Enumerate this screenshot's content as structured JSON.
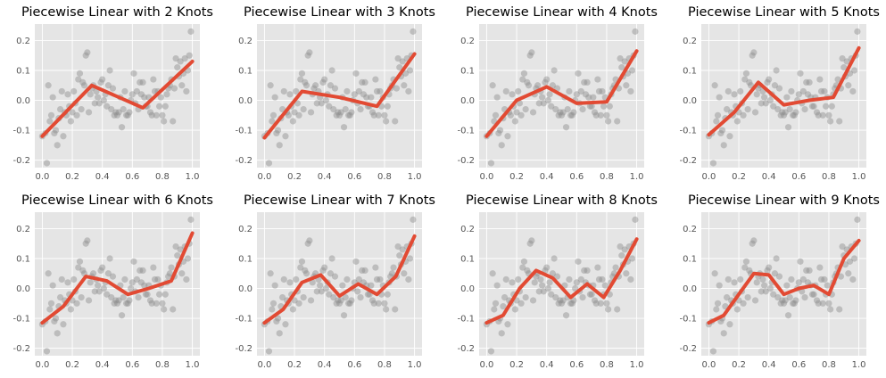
{
  "figure": {
    "background": "#ffffff",
    "panel_background": "#e5e5e5",
    "grid_color": "#ffffff",
    "point_color": "#8c8c8c",
    "line_color": "#e24a33"
  },
  "scatter": {
    "x": [
      0.0,
      0.02,
      0.03,
      0.04,
      0.05,
      0.06,
      0.07,
      0.08,
      0.09,
      0.1,
      0.11,
      0.12,
      0.13,
      0.14,
      0.15,
      0.16,
      0.17,
      0.18,
      0.19,
      0.2,
      0.21,
      0.22,
      0.23,
      0.24,
      0.25,
      0.26,
      0.27,
      0.28,
      0.29,
      0.3,
      0.31,
      0.32,
      0.33,
      0.34,
      0.35,
      0.36,
      0.37,
      0.38,
      0.39,
      0.4,
      0.41,
      0.42,
      0.43,
      0.44,
      0.45,
      0.46,
      0.47,
      0.48,
      0.49,
      0.5,
      0.51,
      0.52,
      0.53,
      0.54,
      0.55,
      0.56,
      0.57,
      0.58,
      0.59,
      0.6,
      0.61,
      0.62,
      0.63,
      0.64,
      0.65,
      0.66,
      0.67,
      0.68,
      0.69,
      0.7,
      0.71,
      0.72,
      0.73,
      0.74,
      0.75,
      0.76,
      0.77,
      0.78,
      0.79,
      0.8,
      0.81,
      0.82,
      0.83,
      0.84,
      0.85,
      0.86,
      0.87,
      0.88,
      0.89,
      0.9,
      0.91,
      0.92,
      0.93,
      0.94,
      0.95,
      0.96,
      0.97,
      0.98,
      0.99
    ],
    "y": [
      -0.12,
      -0.11,
      -0.21,
      0.05,
      -0.07,
      -0.05,
      0.01,
      -0.11,
      -0.1,
      -0.15,
      -0.06,
      -0.03,
      0.03,
      -0.12,
      -0.04,
      -0.05,
      0.02,
      -0.02,
      -0.07,
      -0.04,
      0.03,
      -0.01,
      -0.05,
      0.07,
      0.09,
      -0.03,
      0.06,
      0.05,
      0.15,
      0.16,
      -0.04,
      0.02,
      0.04,
      0.05,
      -0.01,
      0.03,
      0.01,
      -0.01,
      0.06,
      0.07,
      0.0,
      0.02,
      -0.02,
      0.05,
      0.1,
      -0.03,
      0.04,
      -0.05,
      -0.04,
      -0.05,
      -0.04,
      0.01,
      -0.09,
      -0.03,
      0.03,
      -0.05,
      -0.05,
      -0.04,
      0.0,
      0.02,
      0.09,
      -0.01,
      0.03,
      -0.03,
      0.06,
      0.02,
      0.06,
      0.01,
      -0.02,
      -0.02,
      0.01,
      -0.04,
      -0.05,
      0.07,
      0.03,
      -0.05,
      0.03,
      -0.02,
      0.01,
      -0.05,
      -0.07,
      -0.02,
      0.02,
      0.04,
      0.05,
      0.07,
      -0.07,
      0.04,
      0.14,
      0.11,
      0.08,
      0.13,
      0.05,
      0.09,
      0.14,
      0.03,
      0.1,
      0.15,
      0.23
    ]
  },
  "chart_data": [
    {
      "type": "line",
      "title": "Piecewise Linear with 2 Knots",
      "xlim": [
        -0.05,
        1.05
      ],
      "ylim": [
        -0.225,
        0.255
      ],
      "xticks": [
        "0.0",
        "0.2",
        "0.4",
        "0.6",
        "0.8",
        "1.0"
      ],
      "yticks": [
        "-0.2",
        "-0.1",
        "0.0",
        "0.1",
        "0.2"
      ],
      "grid": true,
      "series": [
        {
          "x": [
            0.0,
            0.33,
            0.67,
            1.0
          ],
          "y": [
            -0.12,
            0.05,
            -0.025,
            0.13
          ]
        }
      ]
    },
    {
      "type": "line",
      "title": "Piecewise Linear with 3 Knots",
      "xlim": [
        -0.05,
        1.05
      ],
      "ylim": [
        -0.225,
        0.255
      ],
      "xticks": [
        "0.0",
        "0.2",
        "0.4",
        "0.6",
        "0.8",
        "1.0"
      ],
      "yticks": [
        "-0.2",
        "-0.1",
        "0.0",
        "0.1",
        "0.2"
      ],
      "grid": true,
      "series": [
        {
          "x": [
            0.0,
            0.25,
            0.5,
            0.75,
            1.0
          ],
          "y": [
            -0.125,
            0.03,
            0.01,
            -0.02,
            0.155
          ]
        }
      ]
    },
    {
      "type": "line",
      "title": "Piecewise Linear with 4 Knots",
      "xlim": [
        -0.05,
        1.05
      ],
      "ylim": [
        -0.225,
        0.255
      ],
      "xticks": [
        "0.0",
        "0.2",
        "0.4",
        "0.6",
        "0.8",
        "1.0"
      ],
      "yticks": [
        "-0.2",
        "-0.1",
        "0.0",
        "0.1",
        "0.2"
      ],
      "grid": true,
      "series": [
        {
          "x": [
            0.0,
            0.2,
            0.4,
            0.6,
            0.8,
            1.0
          ],
          "y": [
            -0.12,
            0.0,
            0.045,
            -0.01,
            -0.005,
            0.165
          ]
        }
      ]
    },
    {
      "type": "line",
      "title": "Piecewise Linear with 5 Knots",
      "xlim": [
        -0.05,
        1.05
      ],
      "ylim": [
        -0.225,
        0.255
      ],
      "xticks": [
        "0.0",
        "0.2",
        "0.4",
        "0.6",
        "0.8",
        "1.0"
      ],
      "yticks": [
        "-0.2",
        "-0.1",
        "0.0",
        "0.1",
        "0.2"
      ],
      "grid": true,
      "series": [
        {
          "x": [
            0.0,
            0.17,
            0.33,
            0.5,
            0.67,
            0.83,
            1.0
          ],
          "y": [
            -0.115,
            -0.04,
            0.06,
            -0.015,
            0.0,
            0.01,
            0.175
          ]
        }
      ]
    },
    {
      "type": "line",
      "title": "Piecewise Linear with 6 Knots",
      "xlim": [
        -0.05,
        1.05
      ],
      "ylim": [
        -0.225,
        0.255
      ],
      "xticks": [
        "0.0",
        "0.2",
        "0.4",
        "0.6",
        "0.8",
        "1.0"
      ],
      "yticks": [
        "-0.2",
        "-0.1",
        "0.0",
        "0.1",
        "0.2"
      ],
      "grid": true,
      "series": [
        {
          "x": [
            0.0,
            0.14,
            0.29,
            0.43,
            0.57,
            0.71,
            0.86,
            1.0
          ],
          "y": [
            -0.115,
            -0.06,
            0.04,
            0.025,
            -0.02,
            0.0,
            0.025,
            0.185
          ]
        }
      ]
    },
    {
      "type": "line",
      "title": "Piecewise Linear with 7 Knots",
      "xlim": [
        -0.05,
        1.05
      ],
      "ylim": [
        -0.225,
        0.255
      ],
      "xticks": [
        "0.0",
        "0.2",
        "0.4",
        "0.6",
        "0.8",
        "1.0"
      ],
      "yticks": [
        "-0.2",
        "-0.1",
        "0.0",
        "0.1",
        "0.2"
      ],
      "grid": true,
      "series": [
        {
          "x": [
            0.0,
            0.125,
            0.25,
            0.375,
            0.5,
            0.625,
            0.75,
            0.875,
            1.0
          ],
          "y": [
            -0.115,
            -0.07,
            0.02,
            0.045,
            -0.025,
            0.015,
            -0.02,
            0.04,
            0.175
          ]
        }
      ]
    },
    {
      "type": "line",
      "title": "Piecewise Linear with 8 Knots",
      "xlim": [
        -0.05,
        1.05
      ],
      "ylim": [
        -0.225,
        0.255
      ],
      "xticks": [
        "0.0",
        "0.2",
        "0.4",
        "0.6",
        "0.8",
        "1.0"
      ],
      "yticks": [
        "-0.2",
        "-0.1",
        "0.0",
        "0.1",
        "0.2"
      ],
      "grid": true,
      "series": [
        {
          "x": [
            0.0,
            0.11,
            0.22,
            0.33,
            0.44,
            0.56,
            0.67,
            0.78,
            0.89,
            1.0
          ],
          "y": [
            -0.115,
            -0.09,
            0.0,
            0.06,
            0.035,
            -0.03,
            0.015,
            -0.03,
            0.06,
            0.165
          ]
        }
      ]
    },
    {
      "type": "line",
      "title": "Piecewise Linear with 9 Knots",
      "xlim": [
        -0.05,
        1.05
      ],
      "ylim": [
        -0.225,
        0.255
      ],
      "xticks": [
        "0.0",
        "0.2",
        "0.4",
        "0.6",
        "0.8",
        "1.0"
      ],
      "yticks": [
        "-0.2",
        "-0.1",
        "0.0",
        "0.1",
        "0.2"
      ],
      "grid": true,
      "series": [
        {
          "x": [
            0.0,
            0.1,
            0.2,
            0.3,
            0.4,
            0.5,
            0.6,
            0.7,
            0.8,
            0.9,
            1.0
          ],
          "y": [
            -0.115,
            -0.09,
            -0.02,
            0.05,
            0.045,
            -0.02,
            0.0,
            0.01,
            -0.02,
            0.1,
            0.16
          ]
        }
      ]
    }
  ]
}
